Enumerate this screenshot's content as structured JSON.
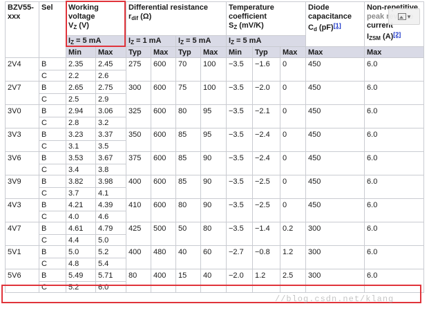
{
  "headers": {
    "type": "BZV55-xxx",
    "sel": "Sel",
    "working_voltage": "Working voltage",
    "vz_sym": "V",
    "vz_sub": "Z",
    "vz_unit": " (V)",
    "diff_res": "Differential resistance",
    "rdif_sym": "r",
    "rdif_sub": "dif",
    "rdif_unit": " (Ω)",
    "temp_coef": "Temperature coefficient",
    "sz_sym": "S",
    "sz_sub": "Z",
    "sz_unit": " (mV/K)",
    "diode_cap": "Diode capacitance",
    "cd_sym": "C",
    "cd_sub": "d",
    "cd_unit": " (pF)",
    "cd_ref": "[1]",
    "nonrep_line1": "Non-repetitive",
    "nonrep_line2": "peak reverse",
    "nonrep_line3": "current",
    "izsm_sym": "I",
    "izsm_sub": "ZSM",
    "izsm_unit": " (A)",
    "izsm_ref": "[2]"
  },
  "conditions": {
    "vz_cond": "I  = 5 mA",
    "vz_cond_sym": "I",
    "vz_cond_sub": "Z",
    "vz_cond_val": " = 5 mA",
    "rdif_cond1_sym": "I",
    "rdif_cond1_sub": "Z",
    "rdif_cond1_val": " = 1 mA",
    "rdif_cond2_sym": "I",
    "rdif_cond2_sub": "Z",
    "rdif_cond2_val": " = 5 mA",
    "sz_cond_sym": "I",
    "sz_cond_sub": "Z",
    "sz_cond_val": " = 5 mA"
  },
  "subheaders": [
    "Min",
    "Max",
    "Typ",
    "Max",
    "Typ",
    "Max",
    "Min",
    "Typ",
    "Max",
    "Max",
    "Max"
  ],
  "rows": [
    {
      "type": "2V4",
      "sel": "B",
      "vmin": "2.35",
      "vmax": "2.45",
      "r1typ": "275",
      "r1max": "600",
      "r5typ": "70",
      "r5max": "100",
      "smin": "−3.5",
      "styp": "−1.6",
      "smax": "0",
      "cd": "450",
      "izsm": "6.0",
      "sel2": "C",
      "vmin2": "2.2",
      "vmax2": "2.6"
    },
    {
      "type": "2V7",
      "sel": "B",
      "vmin": "2.65",
      "vmax": "2.75",
      "r1typ": "300",
      "r1max": "600",
      "r5typ": "75",
      "r5max": "100",
      "smin": "−3.5",
      "styp": "−2.0",
      "smax": "0",
      "cd": "450",
      "izsm": "6.0",
      "sel2": "C",
      "vmin2": "2.5",
      "vmax2": "2.9"
    },
    {
      "type": "3V0",
      "sel": "B",
      "vmin": "2.94",
      "vmax": "3.06",
      "r1typ": "325",
      "r1max": "600",
      "r5typ": "80",
      "r5max": "95",
      "smin": "−3.5",
      "styp": "−2.1",
      "smax": "0",
      "cd": "450",
      "izsm": "6.0",
      "sel2": "C",
      "vmin2": "2.8",
      "vmax2": "3.2"
    },
    {
      "type": "3V3",
      "sel": "B",
      "vmin": "3.23",
      "vmax": "3.37",
      "r1typ": "350",
      "r1max": "600",
      "r5typ": "85",
      "r5max": "95",
      "smin": "−3.5",
      "styp": "−2.4",
      "smax": "0",
      "cd": "450",
      "izsm": "6.0",
      "sel2": "C",
      "vmin2": "3.1",
      "vmax2": "3.5"
    },
    {
      "type": "3V6",
      "sel": "B",
      "vmin": "3.53",
      "vmax": "3.67",
      "r1typ": "375",
      "r1max": "600",
      "r5typ": "85",
      "r5max": "90",
      "smin": "−3.5",
      "styp": "−2.4",
      "smax": "0",
      "cd": "450",
      "izsm": "6.0",
      "sel2": "C",
      "vmin2": "3.4",
      "vmax2": "3.8"
    },
    {
      "type": "3V9",
      "sel": "B",
      "vmin": "3.82",
      "vmax": "3.98",
      "r1typ": "400",
      "r1max": "600",
      "r5typ": "85",
      "r5max": "90",
      "smin": "−3.5",
      "styp": "−2.5",
      "smax": "0",
      "cd": "450",
      "izsm": "6.0",
      "sel2": "C",
      "vmin2": "3.7",
      "vmax2": "4.1"
    },
    {
      "type": "4V3",
      "sel": "B",
      "vmin": "4.21",
      "vmax": "4.39",
      "r1typ": "410",
      "r1max": "600",
      "r5typ": "80",
      "r5max": "90",
      "smin": "−3.5",
      "styp": "−2.5",
      "smax": "0",
      "cd": "450",
      "izsm": "6.0",
      "sel2": "C",
      "vmin2": "4.0",
      "vmax2": "4.6"
    },
    {
      "type": "4V7",
      "sel": "B",
      "vmin": "4.61",
      "vmax": "4.79",
      "r1typ": "425",
      "r1max": "500",
      "r5typ": "50",
      "r5max": "80",
      "smin": "−3.5",
      "styp": "−1.4",
      "smax": "0.2",
      "cd": "300",
      "izsm": "6.0",
      "sel2": "C",
      "vmin2": "4.4",
      "vmax2": "5.0"
    },
    {
      "type": "5V1",
      "sel": "B",
      "vmin": "5.0",
      "vmax": "5.2",
      "r1typ": "400",
      "r1max": "480",
      "r5typ": "40",
      "r5max": "60",
      "smin": "−2.7",
      "styp": "−0.8",
      "smax": "1.2",
      "cd": "300",
      "izsm": "6.0",
      "sel2": "C",
      "vmin2": "4.8",
      "vmax2": "5.4"
    },
    {
      "type": "5V6",
      "sel": "B",
      "vmin": "5.49",
      "vmax": "5.71",
      "r1typ": "80",
      "r1max": "400",
      "r5typ": "15",
      "r5max": "40",
      "smin": "−2.0",
      "styp": "1.2",
      "smax": "2.5",
      "cd": "300",
      "izsm": "6.0",
      "sel2": "C",
      "vmin2": "5.2",
      "vmax2": "6.0"
    }
  ],
  "highlight_color": "#e0333a",
  "header_band_color": "#d9dae6",
  "overlay_icon": "image-search-icon",
  "watermark": "//blog.csdn.net/klang"
}
